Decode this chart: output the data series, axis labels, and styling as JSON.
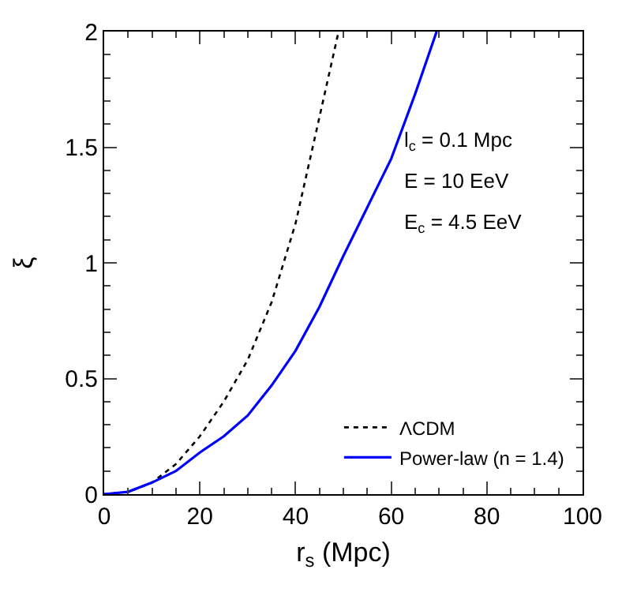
{
  "chart_data": {
    "type": "line",
    "xlabel": "r$_{s}$ (Mpc)",
    "ylabel": "ξ",
    "xlim": [
      0,
      100
    ],
    "ylim": [
      0,
      2
    ],
    "xticks": [
      0,
      20,
      40,
      60,
      80,
      100
    ],
    "yticks": [
      0,
      0.5,
      1,
      1.5,
      2
    ],
    "legend": "bottom right",
    "marker": "none",
    "annotations": [
      "l$_{c}$ = 0.1 Mpc",
      "E = 10 EeV",
      "E$_{c}$ = 4.5 EeV"
    ],
    "series": [
      {
        "name": "ΛCDM",
        "color": "#000000",
        "line_style": "dotted",
        "x": [
          0,
          5,
          10,
          15,
          20,
          25,
          30,
          35,
          40,
          45,
          49
        ],
        "values": [
          0,
          0.01,
          0.05,
          0.13,
          0.25,
          0.4,
          0.58,
          0.83,
          1.17,
          1.63,
          2.0
        ]
      },
      {
        "name": "Power-law (n = 1.4)",
        "color": "#0000ff",
        "line_style": "solid",
        "x": [
          0,
          5,
          10,
          15,
          20,
          25,
          30,
          35,
          40,
          45,
          50,
          55,
          60,
          65,
          69.5
        ],
        "values": [
          0,
          0.01,
          0.05,
          0.1,
          0.18,
          0.25,
          0.34,
          0.47,
          0.62,
          0.81,
          1.03,
          1.24,
          1.45,
          1.73,
          2.0
        ]
      }
    ]
  }
}
